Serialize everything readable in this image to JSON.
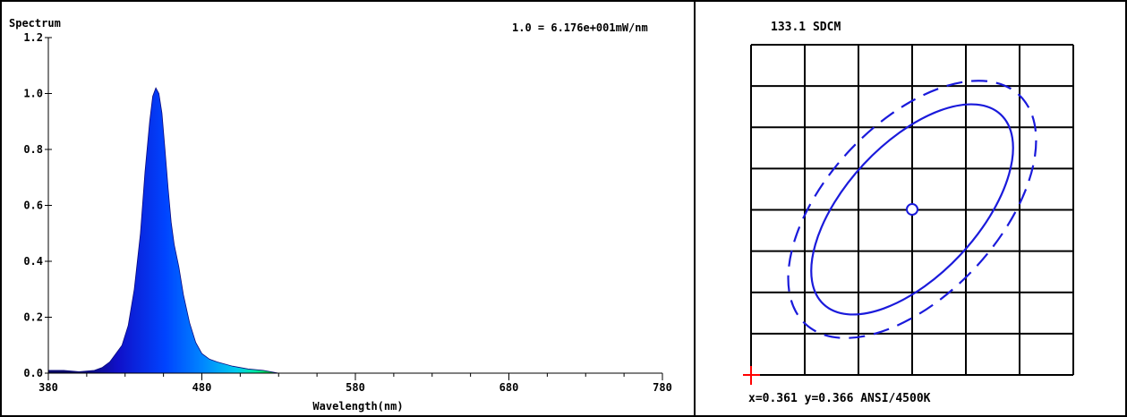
{
  "chart_data": [
    {
      "type": "area",
      "title": "Spectrum",
      "scale_note": "1.0 = 6.176e+001mW/nm",
      "xlabel": "Wavelength(nm)",
      "ylabel": "",
      "xlim": [
        380,
        780
      ],
      "ylim": [
        0,
        1.2
      ],
      "x_ticks": [
        "380",
        "480",
        "580",
        "680",
        "780"
      ],
      "y_ticks": [
        "0.0",
        "0.2",
        "0.4",
        "0.6",
        "0.8",
        "1.0",
        "1.2"
      ],
      "grid": false,
      "series": [
        {
          "points": [
            [
              380,
              0.01
            ],
            [
              390,
              0.01
            ],
            [
              400,
              0.005
            ],
            [
              410,
              0.01
            ],
            [
              415,
              0.02
            ],
            [
              420,
              0.04
            ],
            [
              424,
              0.07
            ],
            [
              428,
              0.1
            ],
            [
              432,
              0.17
            ],
            [
              436,
              0.3
            ],
            [
              440,
              0.5
            ],
            [
              443,
              0.72
            ],
            [
              446,
              0.9
            ],
            [
              448,
              0.99
            ],
            [
              450,
              1.02
            ],
            [
              452,
              1.0
            ],
            [
              454,
              0.93
            ],
            [
              456,
              0.8
            ],
            [
              458,
              0.66
            ],
            [
              460,
              0.54
            ],
            [
              462,
              0.46
            ],
            [
              465,
              0.38
            ],
            [
              468,
              0.28
            ],
            [
              472,
              0.18
            ],
            [
              476,
              0.11
            ],
            [
              480,
              0.07
            ],
            [
              485,
              0.05
            ],
            [
              490,
              0.04
            ],
            [
              500,
              0.025
            ],
            [
              510,
              0.015
            ],
            [
              520,
              0.01
            ],
            [
              530,
              0.0
            ],
            [
              600,
              0.0
            ],
            [
              700,
              0.0
            ],
            [
              780,
              0.0
            ]
          ]
        }
      ]
    },
    {
      "type": "scatter",
      "title": "133.1 SDCM",
      "point": {
        "x": 0.361,
        "y": 0.366
      },
      "grid": true,
      "readout": "x=0.361 y=0.366 ANSI/4500K"
    }
  ],
  "colors": {
    "frame": "#000000",
    "curve_blue": "#1a1adb",
    "marker_red": "#ff0000"
  }
}
